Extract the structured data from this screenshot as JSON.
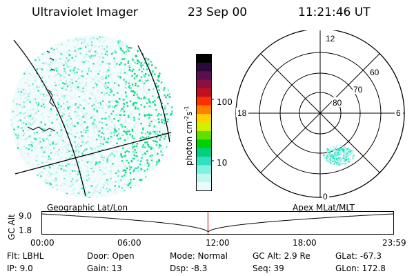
{
  "header": {
    "title": "Ultraviolet Imager",
    "date": "23 Sep 00",
    "time": "11:21:46 UT"
  },
  "colorbar": {
    "label": "photon cm",
    "label_sup1": "-2",
    "label_s": "s",
    "label_sup2": "-1",
    "ticks": [
      "100",
      "10"
    ],
    "colors": [
      "#000000",
      "#2a0a3a",
      "#5a1050",
      "#8a1040",
      "#c01020",
      "#ff3000",
      "#ff8000",
      "#ffd000",
      "#d0f000",
      "#60e000",
      "#00d000",
      "#00d080",
      "#30e0c0",
      "#80f0e0",
      "#c0f8f0",
      "#e8fcfc"
    ]
  },
  "polar": {
    "labels": {
      "top": "12",
      "bottom": "0",
      "left": "18",
      "right": "6"
    },
    "rings": [
      "60",
      "70",
      "80"
    ]
  },
  "map_labels": {
    "left": "Geographic Lat/Lon",
    "right": "Apex MLat/MLT"
  },
  "altitude_plot": {
    "ylabel": "GC Alt",
    "yticks": [
      "9.0",
      "1.8"
    ],
    "xticks": [
      "00:00",
      "06:00",
      "12:00",
      "18:00",
      "23:59"
    ],
    "current_time_hours": 11.36
  },
  "status": {
    "filter": "Flt: LBHL",
    "ip": "IP:  9.0",
    "door": "Door: Open",
    "gain": "Gain: 13",
    "mode": "Mode: Normal",
    "dsp": "Dsp:    -8.3",
    "gcalt": "GC Alt: 2.9 Re",
    "seq": "Seq: 39",
    "glat": "GLat: -67.3",
    "glon": "GLon: 172.8"
  }
}
